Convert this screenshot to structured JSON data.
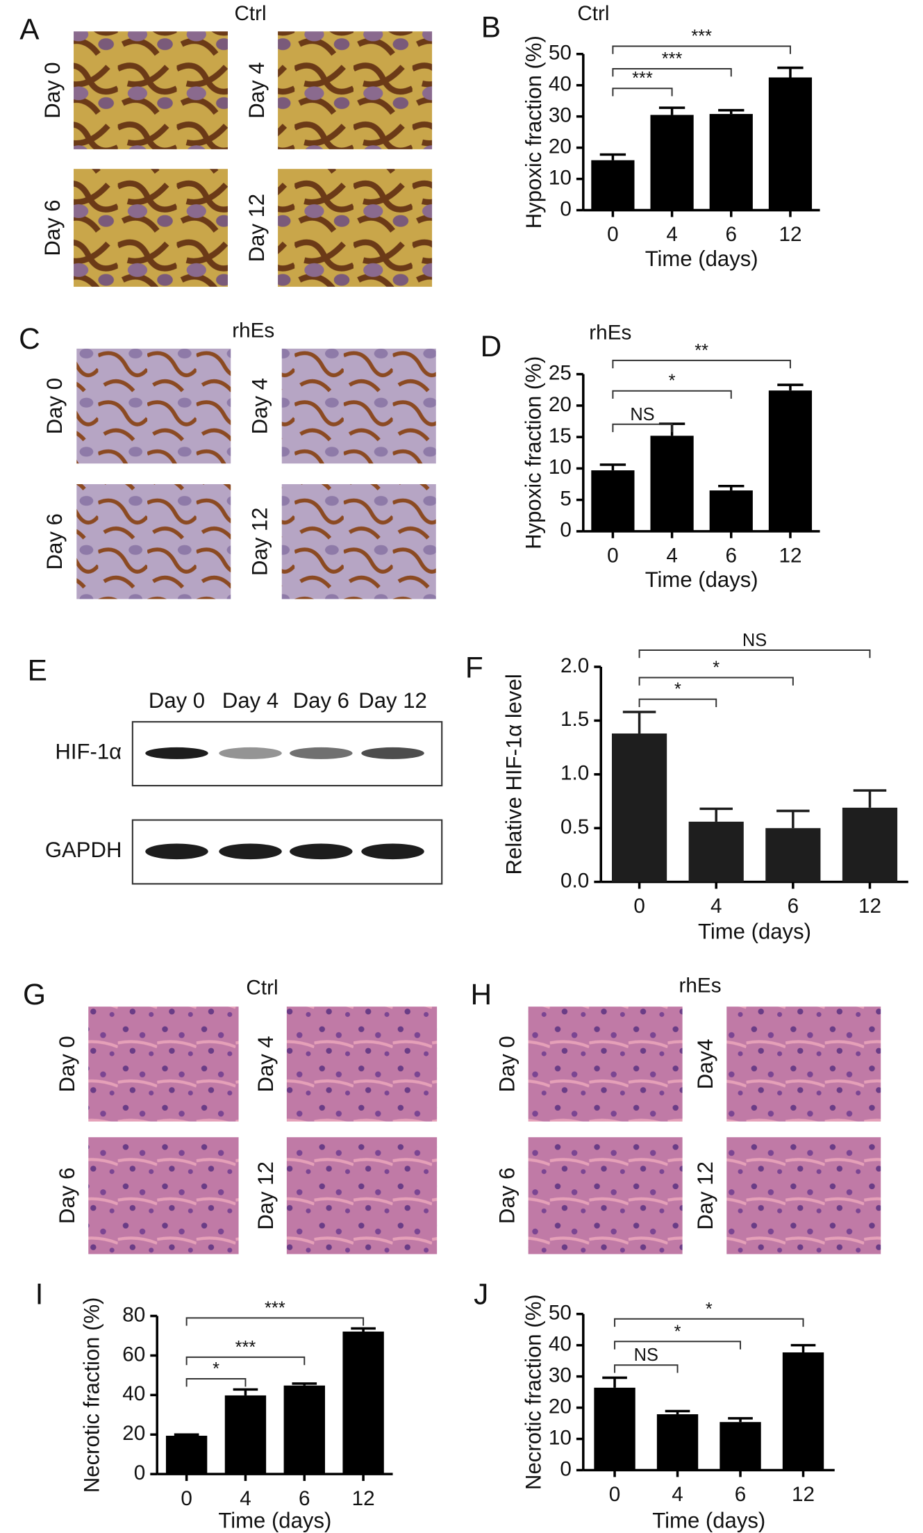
{
  "micrographs": [
    {
      "panel_label": "A",
      "title": "Ctrl",
      "labels": [
        "Day 0",
        "Day 4",
        "Day 6",
        "Day 12"
      ]
    },
    {
      "panel_label": "C",
      "title": "rhEs",
      "labels": [
        "Day 0",
        "Day 4",
        "Day 6",
        "Day 12"
      ]
    },
    {
      "panel_label": "G",
      "title": "Ctrl",
      "labels": [
        "Day 0",
        "Day 4",
        "Day 6",
        "Day 12"
      ]
    },
    {
      "panel_label": "H",
      "title": "rhEs",
      "labels": [
        "Day 0",
        "Day4",
        "Day 6",
        "Day 12"
      ]
    }
  ],
  "blot": {
    "panel_label": "E",
    "lanes": [
      "Day 0",
      "Day 4",
      "Day 6",
      "Day 12"
    ],
    "proteins": [
      "HIF-1α",
      "GAPDH"
    ]
  },
  "chart_data": [
    {
      "type": "bar",
      "panel_label": "B",
      "title": "Ctrl",
      "x_label": "Time (days)",
      "y_label": "Hypoxic fraction (%)",
      "categories": [
        "0",
        "4",
        "6",
        "12"
      ],
      "values": [
        16,
        30.5,
        30.8,
        42.5
      ],
      "errors": [
        1.8,
        2.3,
        1.2,
        3.1
      ],
      "color": "#000000",
      "ylim": [
        0,
        50
      ],
      "yticks": [
        0,
        10,
        20,
        30,
        40,
        50
      ],
      "comparisons": [
        {
          "from": "0",
          "to": "4",
          "label": "***"
        },
        {
          "from": "0",
          "to": "6",
          "label": "***"
        },
        {
          "from": "0",
          "to": "12",
          "label": "***"
        }
      ]
    },
    {
      "type": "bar",
      "panel_label": "D",
      "title": "rhEs",
      "x_label": "Time (days)",
      "y_label": "Hypoxic fraction (%)",
      "categories": [
        "0",
        "4",
        "6",
        "12"
      ],
      "values": [
        9.7,
        15.2,
        6.5,
        22.4
      ],
      "errors": [
        0.9,
        1.9,
        0.7,
        0.9
      ],
      "color": "#000000",
      "ylim": [
        0,
        25
      ],
      "yticks": [
        0,
        5,
        10,
        15,
        20,
        25
      ],
      "comparisons": [
        {
          "from": "0",
          "to": "4",
          "label": "NS"
        },
        {
          "from": "0",
          "to": "6",
          "label": "*"
        },
        {
          "from": "0",
          "to": "12",
          "label": "**"
        }
      ]
    },
    {
      "type": "bar",
      "panel_label": "F",
      "x_label": "Time (days)",
      "y_label": "Relative HIF-1α level",
      "categories": [
        "0",
        "4",
        "6",
        "12"
      ],
      "values": [
        1.38,
        0.56,
        0.5,
        0.69
      ],
      "errors": [
        0.2,
        0.12,
        0.16,
        0.16
      ],
      "color": "#1e1e1e",
      "ylim": [
        0,
        2
      ],
      "yticks": [
        {
          "value": 0,
          "label": "0.0"
        },
        {
          "value": 0.5,
          "label": "0.5"
        },
        {
          "value": 1,
          "label": "1.0"
        },
        {
          "value": 1.5,
          "label": "1.5"
        },
        {
          "value": 2,
          "label": "2.0"
        }
      ],
      "comparisons": [
        {
          "from": "0",
          "to": "4",
          "label": "*"
        },
        {
          "from": "0",
          "to": "6",
          "label": "*"
        },
        {
          "from": "0",
          "to": "12",
          "label": "NS"
        }
      ]
    },
    {
      "type": "bar",
      "panel_label": "I",
      "x_label": "Time (days)",
      "y_label": "Necrotic fraction (%)",
      "categories": [
        "0",
        "4",
        "6",
        "12"
      ],
      "values": [
        19.4,
        39.8,
        44.8,
        72.1
      ],
      "errors": [
        0.6,
        3,
        1,
        1.6
      ],
      "color": "#000000",
      "ylim": [
        0,
        80
      ],
      "yticks": [
        0,
        20,
        40,
        60,
        80
      ],
      "comparisons": [
        {
          "from": "0",
          "to": "4",
          "label": "*"
        },
        {
          "from": "0",
          "to": "6",
          "label": "***"
        },
        {
          "from": "0",
          "to": "12",
          "label": "***"
        }
      ]
    },
    {
      "type": "bar",
      "panel_label": "J",
      "x_label": "Time (days)",
      "y_label": "Necrotic fraction (%)",
      "categories": [
        "0",
        "4",
        "6",
        "12"
      ],
      "values": [
        26.4,
        17.9,
        15.4,
        37.7
      ],
      "errors": [
        3.2,
        1,
        1.2,
        2.3
      ],
      "color": "#000000",
      "ylim": [
        0,
        50
      ],
      "yticks": [
        0,
        10,
        20,
        30,
        40,
        50
      ],
      "comparisons": [
        {
          "from": "0",
          "to": "4",
          "label": "NS"
        },
        {
          "from": "0",
          "to": "6",
          "label": "*"
        },
        {
          "from": "0",
          "to": "12",
          "label": "*"
        }
      ]
    }
  ]
}
